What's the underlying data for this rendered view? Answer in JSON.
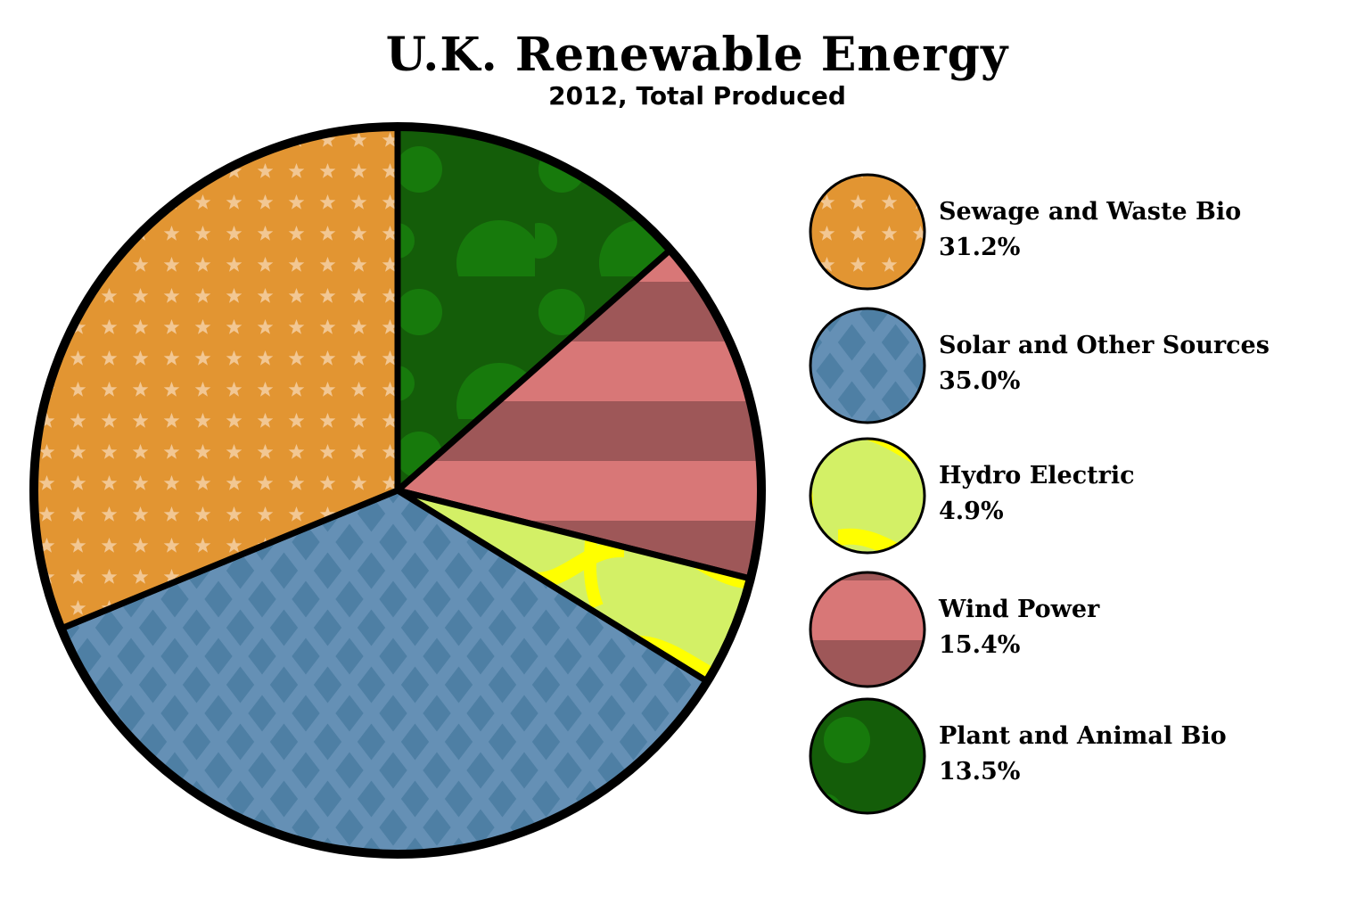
{
  "chart_data": {
    "type": "pie",
    "title": "U.K. Renewable Energy",
    "subtitle": "2012, Total Produced",
    "legend_position": "right",
    "slices": [
      {
        "label": "Sewage and Waste Bio",
        "value": 31.2,
        "value_label": "31.2%",
        "pattern": "stars",
        "color": "#e29532",
        "accent": "#f2c793"
      },
      {
        "label": "Solar and Other Sources",
        "value": 35.0,
        "value_label": "35.0%",
        "pattern": "diamonds",
        "color": "#4e7fa4",
        "accent": "#6590b5"
      },
      {
        "label": "Hydro Electric",
        "value": 4.9,
        "value_label": "4.9%",
        "pattern": "waves",
        "color": "#d3f066",
        "accent": "#ffff00"
      },
      {
        "label": "Wind Power",
        "value": 15.4,
        "value_label": "15.4%",
        "pattern": "stripes",
        "color": "#d87777",
        "accent": "#9e5758"
      },
      {
        "label": "Plant and Animal Bio",
        "value": 13.5,
        "value_label": "13.5%",
        "pattern": "dots",
        "color": "#145d09",
        "accent": "#177a0c"
      }
    ],
    "pie_order": [
      "Plant and Animal Bio",
      "Wind Power",
      "Hydro Electric",
      "Solar and Other Sources",
      "Sewage and Waste Bio"
    ]
  }
}
